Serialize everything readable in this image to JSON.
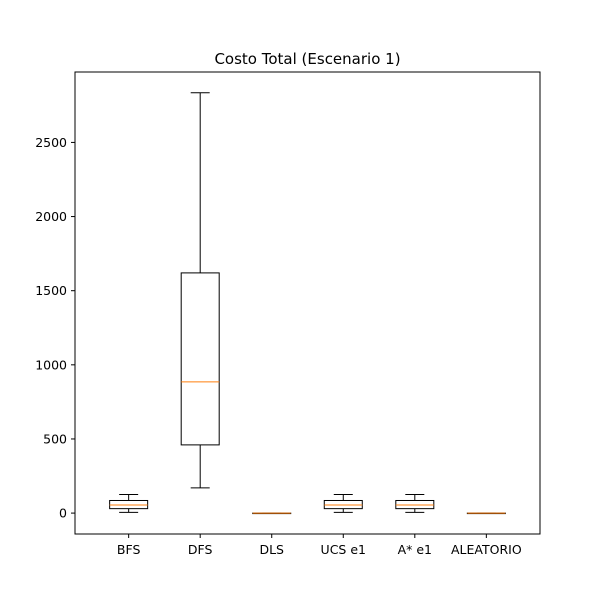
{
  "chart_data": {
    "type": "box",
    "title": "Costo Total (Escenario 1)",
    "xlabel": "",
    "ylabel": "",
    "ylim": [
      -141,
      2975
    ],
    "yticks": [
      0,
      500,
      1000,
      1500,
      2000,
      2500
    ],
    "grid": false,
    "categories": [
      "BFS",
      "DFS",
      "DLS",
      "UCS e1",
      "A* e1",
      "ALEATORIO"
    ],
    "boxes": [
      {
        "label": "BFS",
        "whisker_low": 5,
        "q1": 30,
        "median": 55,
        "q3": 85,
        "whisker_high": 125
      },
      {
        "label": "DFS",
        "whisker_low": 170,
        "q1": 460,
        "median": 885,
        "q3": 1620,
        "whisker_high": 2835
      },
      {
        "label": "DLS",
        "whisker_low": 0,
        "q1": 0,
        "median": 0,
        "q3": 0,
        "whisker_high": 0
      },
      {
        "label": "UCS e1",
        "whisker_low": 5,
        "q1": 30,
        "median": 55,
        "q3": 85,
        "whisker_high": 125
      },
      {
        "label": "A* e1",
        "whisker_low": 5,
        "q1": 30,
        "median": 55,
        "q3": 85,
        "whisker_high": 125
      },
      {
        "label": "ALEATORIO",
        "whisker_low": 0,
        "q1": 0,
        "median": 0,
        "q3": 0,
        "whisker_high": 0
      }
    ],
    "colors": {
      "box": "#000000",
      "median": "#ff7f0e",
      "axes": "#000000"
    }
  }
}
